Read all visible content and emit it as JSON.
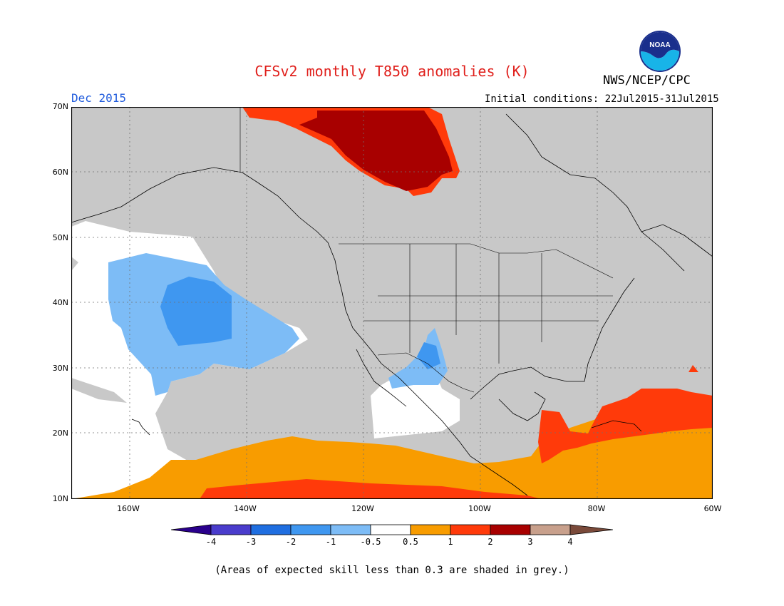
{
  "header": {
    "title": "CFSv2 monthly T850 anomalies (K)",
    "period": "Dec 2015",
    "initial_conditions": "Initial conditions: 22Jul2015-31Jul2015",
    "agency": "NWS/NCEP/CPC",
    "logo_text": "NOAA"
  },
  "axes": {
    "lat_labels": [
      "70N",
      "60N",
      "50N",
      "40N",
      "30N",
      "20N",
      "10N"
    ],
    "lon_labels": [
      "160W",
      "140W",
      "120W",
      "100W",
      "80W",
      "60W"
    ]
  },
  "colorbar": {
    "labels": [
      "-4",
      "-3",
      "-2",
      "-1",
      "-0.5",
      "0.5",
      "1",
      "2",
      "3",
      "4"
    ],
    "colors": [
      "#2a008c",
      "#4a3ccc",
      "#1f6ee0",
      "#3f97f0",
      "#7dbcf6",
      "#ffffff",
      "#f89c00",
      "#ff3a0a",
      "#a80000",
      "#c8a08c",
      "#7a4a3a"
    ],
    "skill_grey": "#c8c8c8"
  },
  "footnote": "(Areas of expected skill less than 0.3 are shaded in grey.)",
  "map_colors": {
    "ocean_grey": "#c8c8c8",
    "neutral_white": "#ffffff",
    "light_blue": "#7dbcf6",
    "mid_blue": "#3f97f0",
    "orange": "#f89c00",
    "red_orange": "#ff3a0a",
    "dark_red": "#a80000"
  }
}
